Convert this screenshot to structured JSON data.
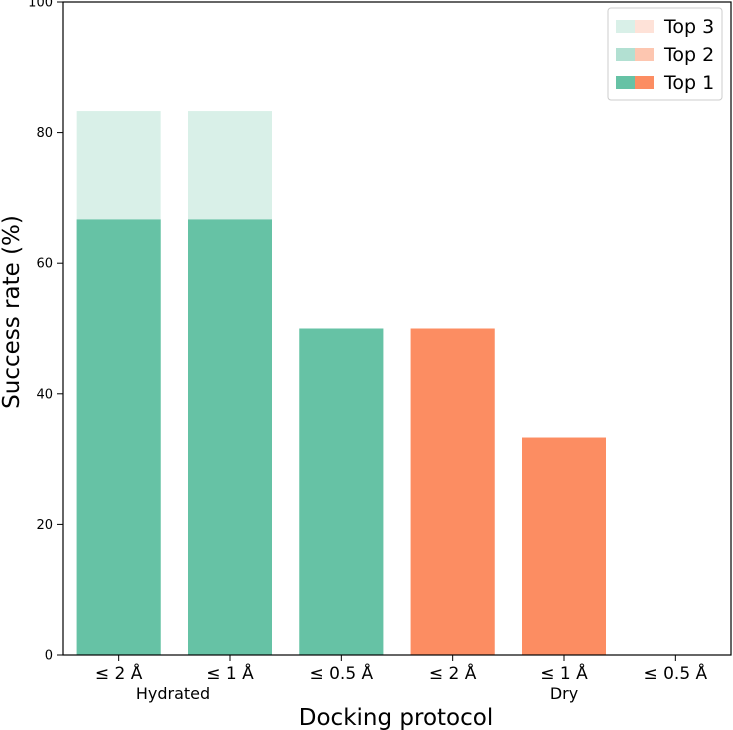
{
  "chart_data": {
    "type": "bar",
    "xlabel": "Docking protocol",
    "ylabel": "Success rate (%)",
    "ylim": [
      0,
      100
    ],
    "yticks": [
      0,
      20,
      40,
      60,
      80,
      100
    ],
    "categories": [
      "≤ 2 Å",
      "≤ 1 Å",
      "≤ 0.5 Å",
      "≤ 2 Å",
      "≤ 1 Å",
      "≤ 0.5 Å"
    ],
    "groups": [
      {
        "label": "Hydrated",
        "color": "#66c2a5",
        "categories": [
          0,
          1,
          2
        ]
      },
      {
        "label": "Dry",
        "color": "#fc8d62",
        "categories": [
          3,
          4,
          5
        ]
      }
    ],
    "series": [
      {
        "name": "Top 1",
        "values": [
          66.7,
          66.7,
          50.0,
          50.0,
          33.3,
          0
        ],
        "opacity": 1.0
      },
      {
        "name": "Top 2",
        "values": [
          66.7,
          66.7,
          50.0,
          50.0,
          33.3,
          0
        ],
        "opacity": 0.5
      },
      {
        "name": "Top 3",
        "values": [
          83.3,
          83.3,
          50.0,
          50.0,
          33.3,
          0
        ],
        "opacity": 0.25
      }
    ],
    "legend": {
      "position": "top-right",
      "entries": [
        "Top 3",
        "Top 2",
        "Top 1"
      ]
    },
    "grid": false
  }
}
